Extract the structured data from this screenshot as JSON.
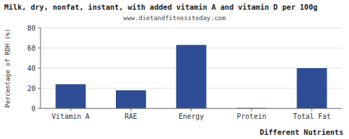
{
  "chart_data": {
    "type": "bar",
    "title": "Milk, dry, nonfat, instant, with added vitamin A and vitamin D per 100g",
    "subtitle": "www.dietandfitnesstoday.com",
    "xlabel": "Different Nutrients",
    "ylabel": "Percentage of RDH (%)",
    "categories": [
      "Vitamin A",
      "RAE",
      "Energy",
      "Protein",
      "Total Fat"
    ],
    "values": [
      24,
      18,
      63,
      0.5,
      40
    ],
    "color": "#2e4d96",
    "ylim": [
      0,
      80
    ],
    "yticks": [
      0,
      20,
      40,
      60,
      80
    ],
    "grid": true
  }
}
